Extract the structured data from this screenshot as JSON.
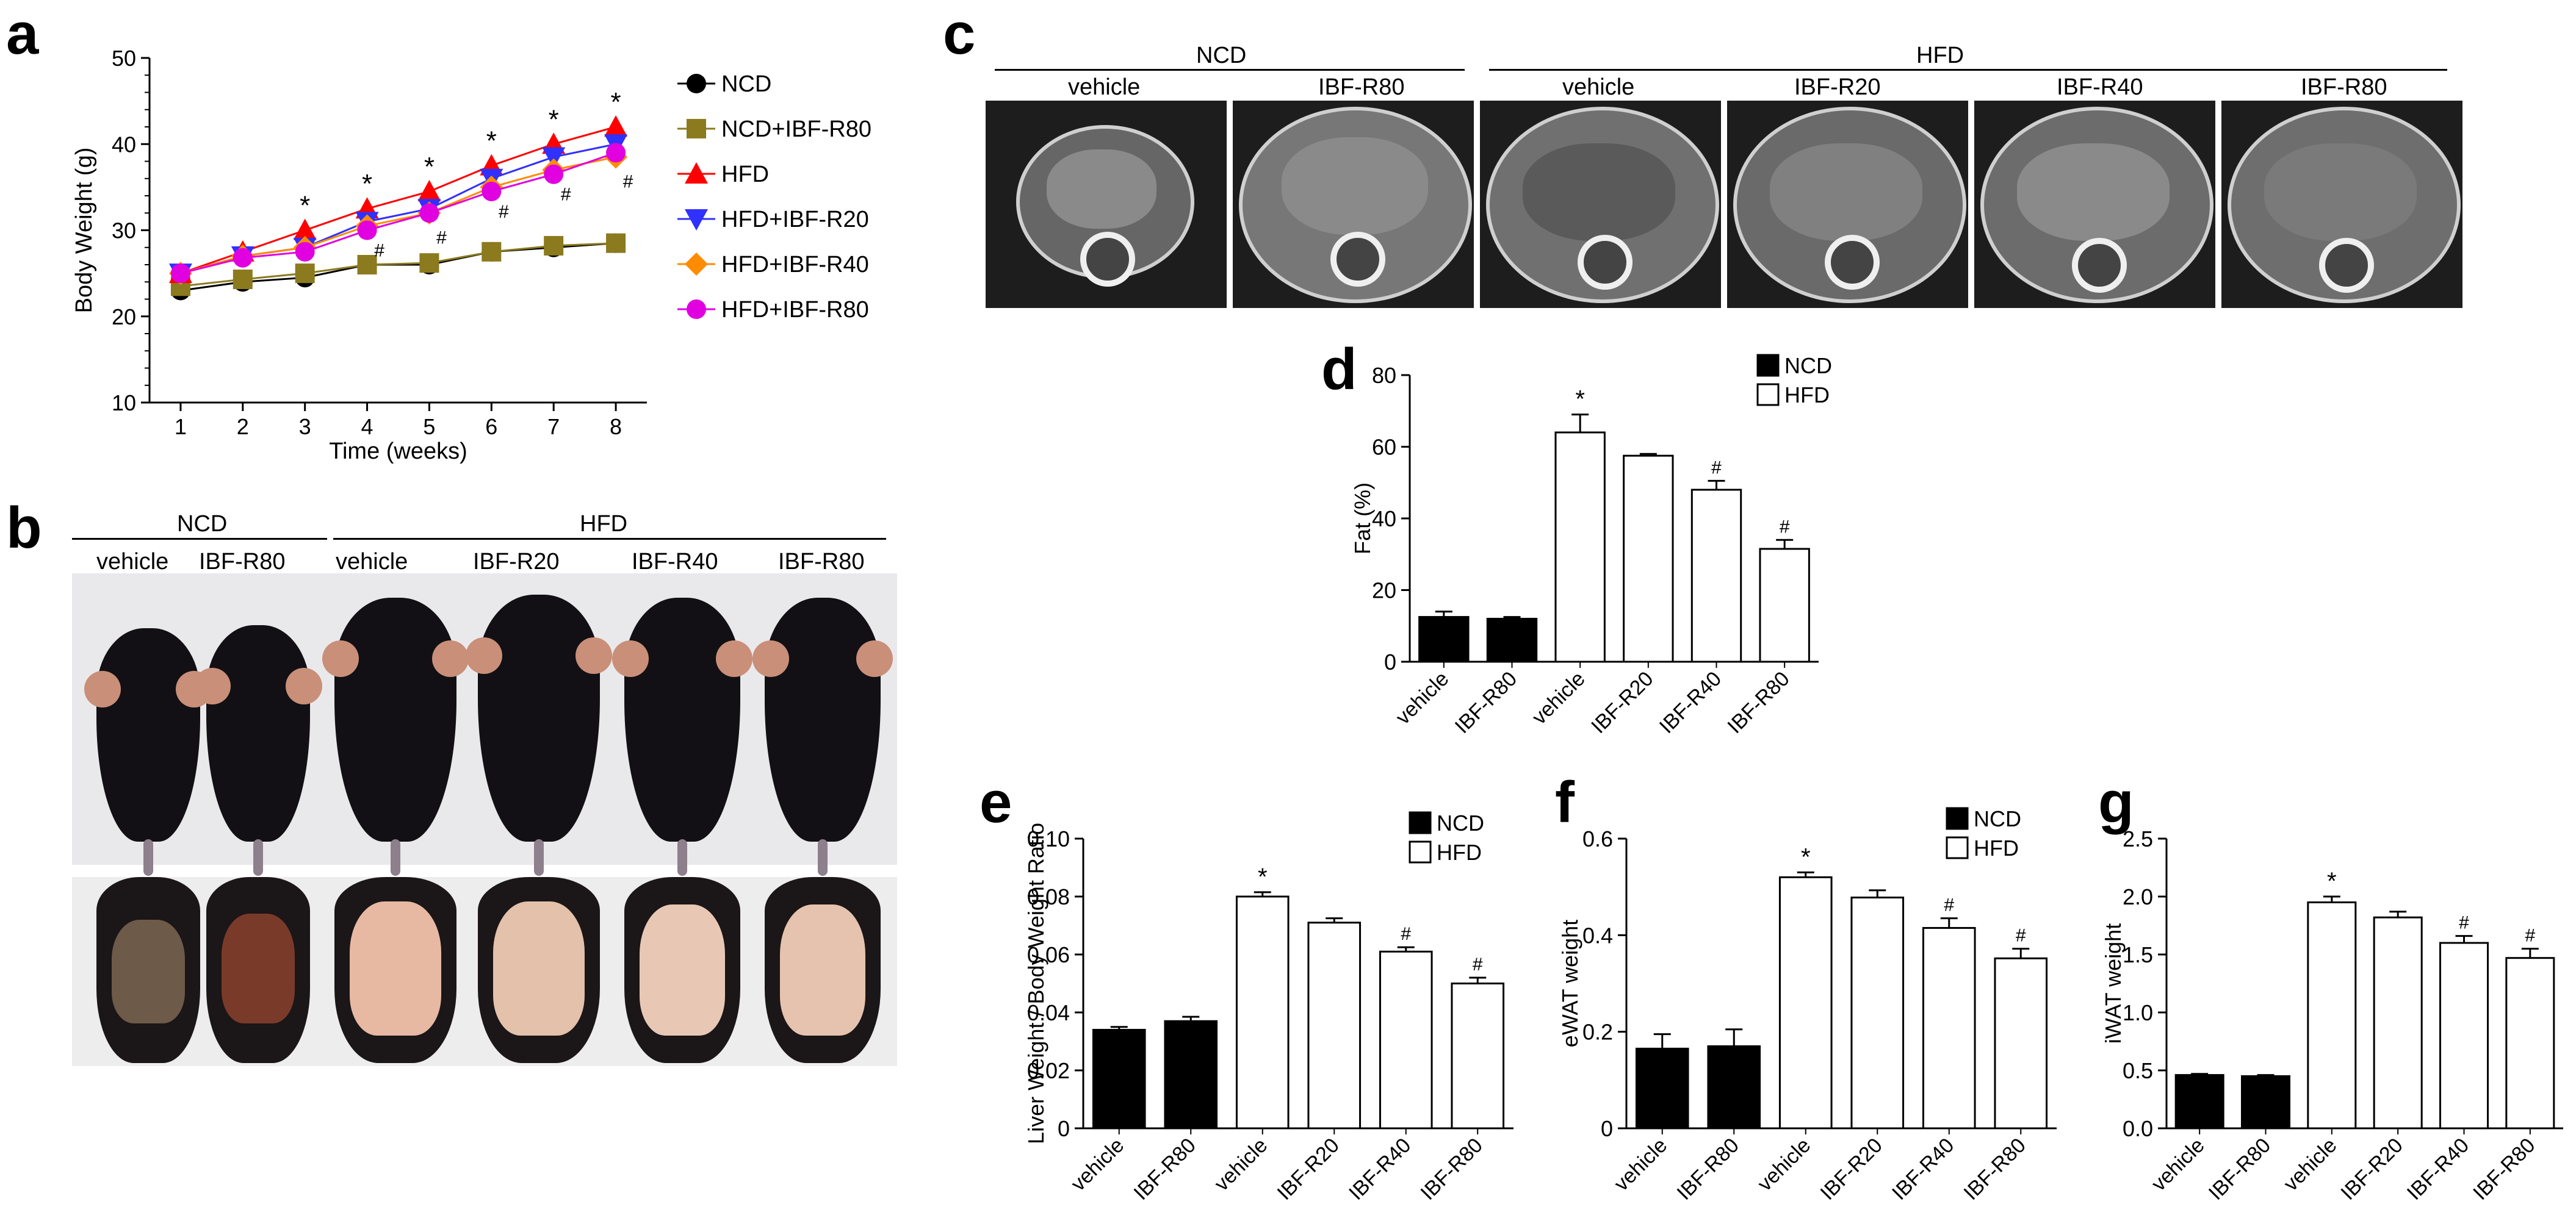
{
  "panel_labels": {
    "a": "a",
    "b": "b",
    "c": "c",
    "d": "d",
    "e": "e",
    "f": "f",
    "g": "g"
  },
  "colors": {
    "NCD": "#000000",
    "NCD+IBF-R80": "#8b7a1e",
    "HFD": "#ff0000",
    "HFD+IBF-R20": "#3030ff",
    "HFD+IBF-R40": "#ff8c00",
    "HFD+IBF-R80": "#e000e0"
  },
  "panel_b": {
    "groups": [
      {
        "label": "NCD",
        "members": [
          "vehicle",
          "IBF-R80"
        ]
      },
      {
        "label": "HFD",
        "members": [
          "vehicle",
          "IBF-R20",
          "IBF-R40",
          "IBF-R80"
        ]
      }
    ]
  },
  "panel_c": {
    "groups": [
      {
        "label": "NCD",
        "members": [
          "vehicle",
          "IBF-R80"
        ]
      },
      {
        "label": "HFD",
        "members": [
          "vehicle",
          "IBF-R20",
          "IBF-R40",
          "IBF-R80"
        ]
      }
    ]
  },
  "chart_data": [
    {
      "id": "a",
      "type": "line",
      "xlabel": "Time (weeks)",
      "ylabel": "Body Weight (g)",
      "x": [
        1,
        2,
        3,
        4,
        5,
        6,
        7,
        8
      ],
      "ylim": [
        10,
        50
      ],
      "yticks": [
        10,
        20,
        30,
        40,
        50
      ],
      "legend_position": "right",
      "series": [
        {
          "name": "NCD",
          "marker": "circle",
          "values": [
            23,
            24,
            24.5,
            26,
            26,
            27.5,
            28,
            28.5
          ]
        },
        {
          "name": "NCD+IBF-R80",
          "marker": "square",
          "values": [
            23.5,
            24.3,
            25,
            26,
            26.2,
            27.5,
            28.2,
            28.5
          ]
        },
        {
          "name": "HFD",
          "marker": "triangle-up",
          "values": [
            25,
            27.5,
            30,
            32.5,
            34.5,
            37.5,
            40,
            42
          ]
        },
        {
          "name": "HFD+IBF-R20",
          "marker": "triangle-down",
          "values": [
            25,
            27,
            28,
            31,
            32.5,
            36,
            38.5,
            40
          ]
        },
        {
          "name": "HFD+IBF-R40",
          "marker": "diamond",
          "values": [
            25,
            27,
            28,
            30.5,
            32,
            35,
            37,
            38.5
          ]
        },
        {
          "name": "HFD+IBF-R80",
          "marker": "circle",
          "values": [
            25,
            26.8,
            27.5,
            30,
            32,
            34.5,
            36.5,
            39
          ]
        }
      ],
      "annotations": {
        "star_weeks": [
          3,
          4,
          5,
          6,
          7,
          8
        ],
        "hash_weeks": [
          4,
          5,
          6,
          7,
          8
        ],
        "star": "*",
        "hash": "#"
      }
    },
    {
      "id": "d",
      "type": "bar",
      "ylabel": "Fat (%)",
      "categories": [
        "vehicle",
        "IBF-R80",
        "vehicle",
        "IBF-R20",
        "IBF-R40",
        "IBF-R80"
      ],
      "groups": [
        "NCD",
        "NCD",
        "HFD",
        "HFD",
        "HFD",
        "HFD"
      ],
      "values": [
        12.5,
        12,
        64,
        57.5,
        48,
        31.5
      ],
      "errors": [
        1.5,
        0.5,
        5,
        0.5,
        2.5,
        2.5
      ],
      "ylim": [
        0,
        80
      ],
      "yticks": [
        0,
        20,
        40,
        60,
        80
      ],
      "tick_labels": [
        "0",
        "20",
        "40",
        "60",
        "80"
      ],
      "marks": [
        "",
        "",
        "*",
        "",
        "#",
        "#"
      ],
      "legend": [
        "NCD",
        "HFD"
      ],
      "legend_position": "top-right"
    },
    {
      "id": "e",
      "type": "bar",
      "ylabel": "Liver Weight / Body Weight Ratio",
      "categories": [
        "vehicle",
        "IBF-R80",
        "vehicle",
        "IBF-R20",
        "IBF-R40",
        "IBF-R80"
      ],
      "groups": [
        "NCD",
        "NCD",
        "HFD",
        "HFD",
        "HFD",
        "HFD"
      ],
      "values": [
        0.034,
        0.037,
        0.08,
        0.071,
        0.061,
        0.05
      ],
      "errors": [
        0.001,
        0.0015,
        0.0015,
        0.0015,
        0.0015,
        0.002
      ],
      "ylim": [
        0,
        0.1
      ],
      "yticks": [
        0,
        0.02,
        0.04,
        0.06,
        0.08,
        0.1
      ],
      "tick_labels": [
        "0",
        "0.02",
        "0.04",
        "0.06",
        "0.08",
        "0.10"
      ],
      "marks": [
        "",
        "",
        "*",
        "",
        "#",
        "#"
      ],
      "legend": [
        "NCD",
        "HFD"
      ],
      "legend_position": "top-right"
    },
    {
      "id": "f",
      "type": "bar",
      "ylabel": "eWAT weight",
      "categories": [
        "vehicle",
        "IBF-R80",
        "vehicle",
        "IBF-R20",
        "IBF-R40",
        "IBF-R80"
      ],
      "groups": [
        "NCD",
        "NCD",
        "HFD",
        "HFD",
        "HFD",
        "HFD"
      ],
      "values": [
        0.165,
        0.17,
        0.52,
        0.478,
        0.415,
        0.352
      ],
      "errors": [
        0.03,
        0.035,
        0.01,
        0.015,
        0.02,
        0.02
      ],
      "ylim": [
        0,
        0.6
      ],
      "yticks": [
        0,
        0.2,
        0.4,
        0.6
      ],
      "tick_labels": [
        "0",
        "0.2",
        "0.4",
        "0.6"
      ],
      "marks": [
        "",
        "",
        "*",
        "",
        "#",
        "#"
      ],
      "legend": [
        "NCD",
        "HFD"
      ],
      "legend_position": "top-right"
    },
    {
      "id": "g",
      "type": "bar",
      "ylabel": "iWAT weight",
      "categories": [
        "vehicle",
        "IBF-R80",
        "vehicle",
        "IBF-R20",
        "IBF-R40",
        "IBF-R80"
      ],
      "groups": [
        "NCD",
        "NCD",
        "HFD",
        "HFD",
        "HFD",
        "HFD"
      ],
      "values": [
        0.46,
        0.45,
        1.95,
        1.82,
        1.6,
        1.47
      ],
      "errors": [
        0.01,
        0.01,
        0.05,
        0.05,
        0.06,
        0.08
      ],
      "ylim": [
        0,
        2.5
      ],
      "yticks": [
        0,
        0.5,
        1,
        1.5,
        2,
        2.5
      ],
      "tick_labels": [
        "0.0",
        "0.5",
        "1.0",
        "1.5",
        "2.0",
        "2.5"
      ],
      "marks": [
        "",
        "",
        "*",
        "",
        "#",
        "#"
      ]
    }
  ]
}
